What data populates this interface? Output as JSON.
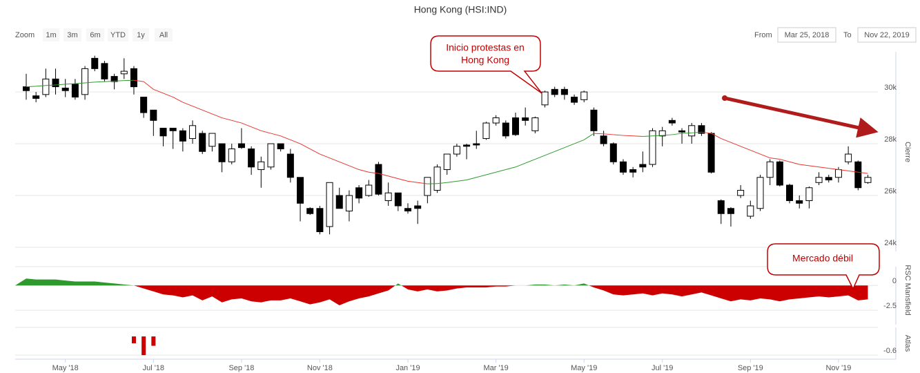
{
  "chart_data": {
    "type": "candlestick",
    "title": "Hong Kong (HSI:IND)",
    "zoom": {
      "label": "Zoom",
      "buttons": [
        "1m",
        "3m",
        "6m",
        "YTD",
        "1y",
        "All"
      ],
      "disabled": [
        "1m"
      ]
    },
    "range": {
      "from_label": "From",
      "from": "Mar 25, 2018",
      "to_label": "To",
      "to": "Nov 22, 2019"
    },
    "categories": [
      null,
      null,
      null,
      null,
      "May '18",
      null,
      null,
      null,
      null,
      null,
      null,
      null,
      null,
      "Jul '18",
      null,
      null,
      null,
      null,
      null,
      null,
      null,
      null,
      "Sep '18",
      null,
      null,
      null,
      null,
      null,
      null,
      null,
      "Nov '18",
      null,
      null,
      null,
      null,
      null,
      null,
      null,
      null,
      "Jan '19",
      null,
      null,
      null,
      null,
      null,
      null,
      null,
      null,
      "Mar '19",
      null,
      null,
      null,
      null,
      null,
      null,
      null,
      null,
      "May '19",
      null,
      null,
      null,
      null,
      null,
      null,
      null,
      "Jul '19",
      null,
      null,
      null,
      null,
      null,
      null,
      null,
      null,
      "Sep '19",
      null,
      null,
      null,
      null,
      null,
      null,
      null,
      null,
      "Nov '19",
      null,
      null,
      null
    ],
    "open": [
      30200,
      29850,
      29900,
      30500,
      30150,
      30300,
      29900,
      31300,
      31100,
      30600,
      30700,
      30900,
      29800,
      29300,
      28600,
      28600,
      28500,
      28200,
      28400,
      27900,
      28000,
      27300,
      28000,
      27800,
      27000,
      27100,
      28000,
      27600,
      26700,
      25500,
      25500,
      24800,
      26000,
      25400,
      26300,
      26000,
      27200,
      25800,
      26100,
      25500,
      25600,
      26000,
      26200,
      27000,
      27600,
      27950,
      28000,
      28200,
      28800,
      28800,
      29000,
      29000,
      28500,
      29500,
      30100,
      30100,
      29800,
      29700,
      29300,
      28300,
      28000,
      27300,
      27000,
      27200,
      27200,
      28300,
      28900,
      28500,
      28300,
      28700,
      28400,
      25800,
      25500,
      26000,
      25200,
      25500,
      26700,
      27300,
      26400,
      25800,
      25800,
      26500,
      26700,
      26700,
      27300,
      27300,
      26500
    ],
    "high": [
      30700,
      30000,
      30900,
      30900,
      30500,
      30500,
      31000,
      31400,
      31200,
      30700,
      31300,
      31000,
      29800,
      29300,
      28600,
      28600,
      28600,
      28900,
      28500,
      28400,
      28000,
      28000,
      28600,
      27900,
      27500,
      28000,
      28000,
      27800,
      26700,
      25550,
      25600,
      26500,
      26300,
      26200,
      26400,
      26600,
      27300,
      26500,
      26100,
      25700,
      25800,
      26700,
      27200,
      27600,
      28000,
      28000,
      28500,
      28850,
      29100,
      28900,
      29200,
      29400,
      29050,
      30050,
      30200,
      30200,
      29900,
      30050,
      29400,
      28500,
      28050,
      27400,
      27100,
      27700,
      28600,
      28650,
      29000,
      28600,
      28800,
      28800,
      28450,
      25850,
      25550,
      26400,
      25800,
      26800,
      27400,
      27350,
      26450,
      26000,
      26350,
      26900,
      26800,
      27100,
      27900,
      27350,
      26800
    ],
    "low": [
      29700,
      29600,
      29800,
      29900,
      29800,
      29700,
      29700,
      30800,
      30400,
      30100,
      30500,
      29900,
      29000,
      28300,
      27900,
      27800,
      27700,
      28000,
      27600,
      27700,
      26900,
      27200,
      27800,
      26800,
      26300,
      27000,
      27700,
      26500,
      25000,
      25250,
      24500,
      24500,
      25500,
      25000,
      25700,
      25950,
      26000,
      25600,
      25400,
      25300,
      24900,
      25700,
      26100,
      26800,
      27500,
      27400,
      27800,
      28150,
      28700,
      28200,
      28300,
      28700,
      28400,
      29400,
      29800,
      29700,
      29500,
      29600,
      28300,
      27900,
      27200,
      26800,
      26700,
      26900,
      27100,
      27900,
      28700,
      28000,
      28000,
      28300,
      26850,
      24900,
      24800,
      25900,
      25100,
      25400,
      26400,
      26350,
      25700,
      25500,
      25500,
      26400,
      26500,
      26500,
      27200,
      26200,
      26450
    ],
    "close": [
      30050,
      29750,
      30500,
      30200,
      30050,
      29800,
      30900,
      30900,
      30500,
      30400,
      30800,
      30200,
      29200,
      28900,
      28300,
      28500,
      28100,
      28700,
      27700,
      28400,
      27300,
      27800,
      27850,
      27100,
      27300,
      28000,
      27800,
      26700,
      25700,
      25300,
      24600,
      26500,
      25500,
      26000,
      25900,
      26400,
      26050,
      26100,
      25600,
      25400,
      25500,
      26700,
      27100,
      27600,
      27900,
      27900,
      27950,
      28800,
      29000,
      28300,
      28350,
      28900,
      29000,
      30000,
      29900,
      29900,
      29600,
      30000,
      28500,
      28000,
      27300,
      26900,
      26900,
      27100,
      28500,
      28500,
      28800,
      28450,
      28700,
      28400,
      26900,
      25300,
      25300,
      26200,
      25600,
      26700,
      27300,
      26400,
      25800,
      25700,
      26300,
      26700,
      26600,
      27000,
      27600,
      26300,
      26700
    ],
    "up_color": "#ffffff",
    "down_color": "#000000",
    "moving_average": {
      "values": [
        30200,
        30220,
        30250,
        30270,
        30300,
        30320,
        30350,
        30380,
        30400,
        30420,
        30440,
        30450,
        30400,
        30100,
        29950,
        29800,
        29600,
        29450,
        29300,
        29150,
        29000,
        28900,
        28800,
        28650,
        28500,
        28400,
        28300,
        28150,
        28000,
        27800,
        27600,
        27450,
        27300,
        27150,
        27000,
        26900,
        26850,
        26750,
        26650,
        26550,
        26500,
        26450,
        26460,
        26500,
        26550,
        26600,
        26700,
        26800,
        26900,
        27000,
        27100,
        27250,
        27400,
        27550,
        27700,
        27850,
        28000,
        28150,
        28400,
        28380,
        28350,
        28320,
        28300,
        28280,
        28300,
        28320,
        28350,
        28400,
        28420,
        28450,
        28400,
        28200,
        28050,
        27900,
        27750,
        27600,
        27450,
        27400,
        27300,
        27200,
        27150,
        27100,
        27050,
        27000,
        26950,
        26900,
        26850
      ],
      "rising_color": "#2e9a2e",
      "falling_color": "#e8342c"
    },
    "ylim": [
      23850,
      31550
    ],
    "yticks": [
      {
        "value": 24000,
        "label": "24k"
      },
      {
        "value": 26000,
        "label": "26k"
      },
      {
        "value": 28000,
        "label": "28k"
      },
      {
        "value": 30000,
        "label": "30k"
      }
    ],
    "y_label": "Cierre",
    "grid": true,
    "annotations": [
      {
        "lines": [
          "Inicio protestas en",
          "Hong Kong"
        ]
      },
      {
        "lines": [
          "Mercado débil"
        ]
      }
    ],
    "panels": [
      {
        "type": "area",
        "y_label": "RSC Mansfield",
        "positive_color": "#2e9a2e",
        "negative_color": "#cc0000",
        "values": [
          0.7,
          0.6,
          0.6,
          0.6,
          0.5,
          0.4,
          0.4,
          0.4,
          0.3,
          0.2,
          0.1,
          0,
          -0.3,
          -0.6,
          -0.9,
          -1.0,
          -1.2,
          -1.0,
          -1.5,
          -1.1,
          -1.7,
          -1.4,
          -1.3,
          -1.6,
          -1.7,
          -1.5,
          -1.5,
          -1.3,
          -1.6,
          -1.9,
          -1.7,
          -1.4,
          -2.0,
          -1.6,
          -1.3,
          -1.1,
          -0.8,
          -0.5,
          0.2,
          -0.4,
          -0.6,
          -0.4,
          -0.6,
          -0.5,
          -0.3,
          -0.2,
          -0.2,
          -0.2,
          -0.1,
          -0.1,
          0,
          0,
          0.1,
          0.1,
          0,
          0.1,
          0,
          0.2,
          -0.2,
          -0.5,
          -0.9,
          -1.0,
          -0.9,
          -0.8,
          -1.0,
          -0.8,
          -0.9,
          -1.1,
          -0.9,
          -0.7,
          -1.0,
          -1.3,
          -1.6,
          -1.4,
          -1.5,
          -1.3,
          -1.4,
          -1.6,
          -1.4,
          -1.3,
          -1.2,
          -1.1,
          -1.2,
          -1.1,
          -1.0,
          -1.5,
          -1.4
        ],
        "ylim": [
          -3.95,
          1.9
        ],
        "yticks": [
          0,
          -2.5
        ]
      },
      {
        "type": "bar",
        "y_label": "Atlas",
        "color": "#cc0000",
        "values": [
          null,
          null,
          null,
          null,
          null,
          null,
          null,
          null,
          null,
          null,
          null,
          -0.22,
          -0.6,
          -0.3,
          null,
          null,
          null,
          null,
          null,
          null,
          null,
          null,
          null,
          null,
          null,
          null,
          null,
          null,
          null,
          null,
          null,
          null,
          null,
          null,
          null,
          null,
          null,
          null,
          null,
          null,
          null,
          null,
          null,
          null,
          null,
          null,
          null,
          null,
          null,
          null,
          null,
          null,
          null,
          null,
          null,
          null,
          null,
          null,
          null,
          null,
          null,
          null,
          null,
          null,
          null,
          null,
          null,
          null,
          null,
          null,
          null,
          null,
          null,
          null,
          null,
          null,
          null,
          null,
          null,
          null,
          null,
          null,
          null,
          null,
          null,
          null,
          null
        ],
        "ylim": [
          -0.73,
          0.29
        ],
        "yticks": [
          -0.6
        ]
      }
    ]
  }
}
